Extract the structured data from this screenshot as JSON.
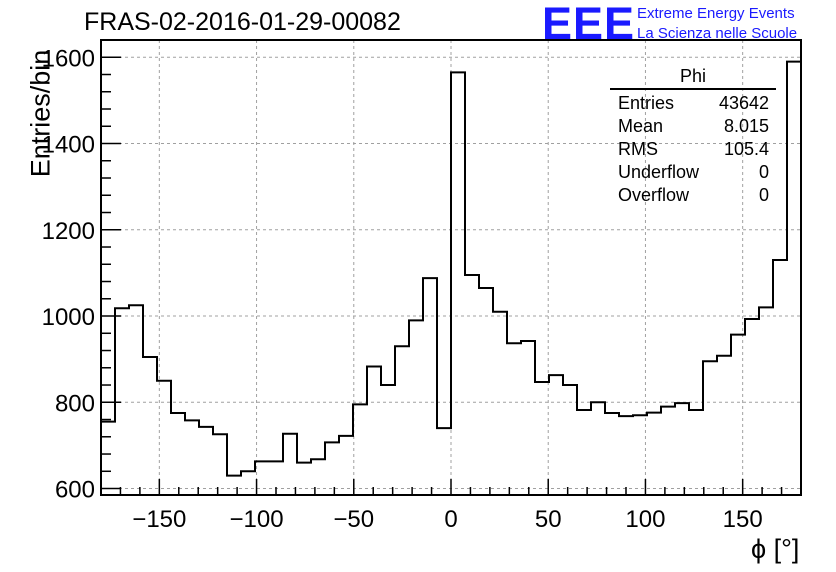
{
  "header": {
    "title": "FRAS-02-2016-01-29-00082",
    "logo": "EEE",
    "logo_line1": "Extreme Energy Events",
    "logo_line2": "La Scienza nelle Scuole"
  },
  "stats": {
    "title": "Phi",
    "rows": [
      {
        "label": "Entries",
        "value": "43642"
      },
      {
        "label": "Mean",
        "value": "8.015"
      },
      {
        "label": "RMS",
        "value": "105.4"
      },
      {
        "label": "Underflow",
        "value": "0"
      },
      {
        "label": "Overflow",
        "value": "0"
      }
    ]
  },
  "chart_data": {
    "type": "bar",
    "style": "step-histogram",
    "xlabel": "ϕ [°]",
    "ylabel": "Entries/bin",
    "xlim": [
      -180,
      180
    ],
    "ylim": [
      585,
      1640
    ],
    "bin_width": 7.2,
    "xticks": [
      -150,
      -100,
      -50,
      0,
      50,
      100,
      150
    ],
    "xtick_labels": [
      "−150",
      "−100",
      "−50",
      "0",
      "50",
      "100",
      "150"
    ],
    "yticks": [
      600,
      800,
      1000,
      1200,
      1400,
      1600
    ],
    "grid": true,
    "colors": {
      "line": "#000000",
      "grid": "#a0a0a0",
      "accent": "#1a1aff"
    },
    "values": [
      755,
      1018,
      1025,
      905,
      850,
      775,
      758,
      743,
      726,
      630,
      640,
      663,
      663,
      727,
      660,
      668,
      707,
      722,
      795,
      883,
      840,
      930,
      990,
      1088,
      740,
      1565,
      1095,
      1065,
      1010,
      937,
      942,
      847,
      863,
      840,
      782,
      800,
      775,
      768,
      770,
      776,
      790,
      798,
      782,
      895,
      908,
      957,
      993,
      1020,
      1130,
      1590
    ]
  }
}
